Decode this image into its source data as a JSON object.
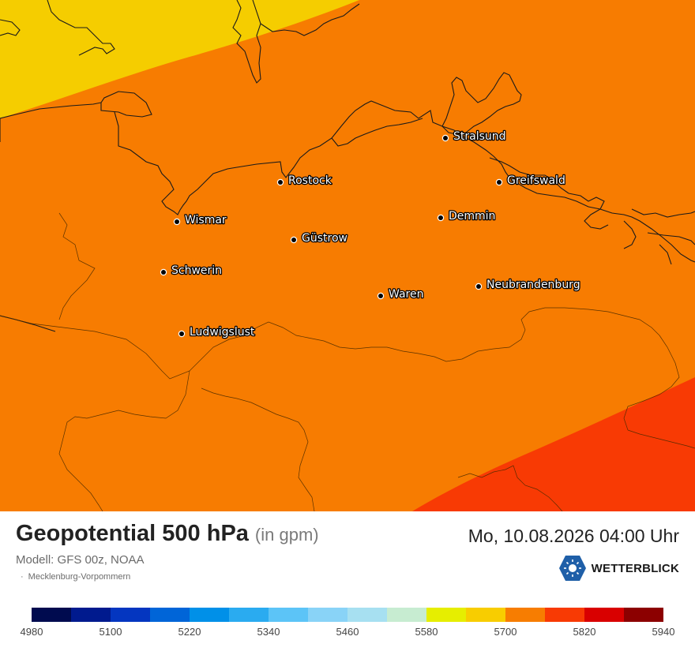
{
  "map": {
    "colors": {
      "yellow": "#f5cd00",
      "orange": "#f77c01",
      "red_orange": "#f83a04"
    },
    "cities": [
      {
        "id": "stralsund",
        "name": "Stralsund"
      },
      {
        "id": "rostock",
        "name": "Rostock"
      },
      {
        "id": "greifswald",
        "name": "Greifswald"
      },
      {
        "id": "wismar",
        "name": "Wismar"
      },
      {
        "id": "demmin",
        "name": "Demmin"
      },
      {
        "id": "guestrow",
        "name": "Güstrow"
      },
      {
        "id": "schwerin",
        "name": "Schwerin"
      },
      {
        "id": "neubrandenburg",
        "name": "Neubrandenburg"
      },
      {
        "id": "waren",
        "name": "Waren"
      },
      {
        "id": "ludwigslust",
        "name": "Ludwigslust"
      }
    ]
  },
  "footer": {
    "title": "Geopotential 500 hPa",
    "unit": "(in gpm)",
    "datetime": "Mo, 10.08.2026 04:00 Uhr",
    "model": "Modell: GFS 00z, NOAA",
    "region": "Mecklenburg-Vorpommern",
    "brand": "WETTERBLICK"
  },
  "legend": {
    "colors": [
      "#000b4f",
      "#001a8e",
      "#0436c0",
      "#0065d8",
      "#0090e8",
      "#2aabf0",
      "#5cc4f7",
      "#89d3f7",
      "#a7e0f1",
      "#c7ecd1",
      "#e6ee00",
      "#f8cd00",
      "#f77d01",
      "#f83a04",
      "#d90000",
      "#8c0000"
    ],
    "labels": [
      "4980",
      "5100",
      "5220",
      "5340",
      "5460",
      "5580",
      "5700",
      "5820",
      "5940"
    ]
  }
}
